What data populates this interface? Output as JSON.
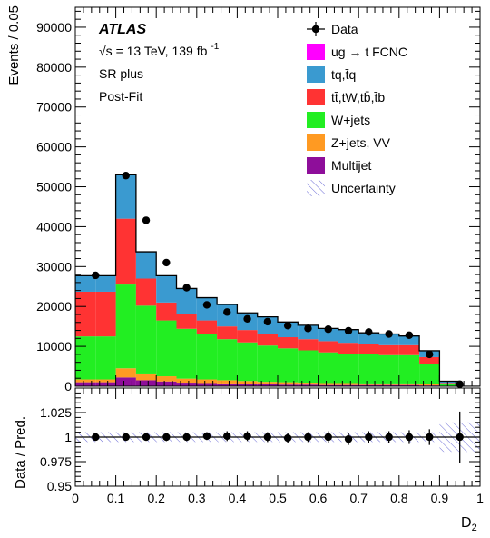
{
  "chart_data": {
    "type": "bar",
    "stacked": true,
    "x_edges": [
      0,
      0.05,
      0.1,
      0.15,
      0.2,
      0.25,
      0.3,
      0.35,
      0.4,
      0.45,
      0.5,
      0.55,
      0.6,
      0.65,
      0.7,
      0.75,
      0.8,
      0.85,
      0.9,
      0.95,
      1.0
    ],
    "x_ticks": [
      "0",
      "0.1",
      "0.2",
      "0.3",
      "0.4",
      "0.5",
      "0.6",
      "0.7",
      "0.8",
      "0.9",
      "1"
    ],
    "x_tick_values": [
      0,
      0.1,
      0.2,
      0.3,
      0.4,
      0.5,
      0.6,
      0.7,
      0.8,
      0.9,
      1.0
    ],
    "xlabel": "D",
    "xlabel_sub": "2",
    "ylabel": "Events / 0.05",
    "ylim": [
      0,
      95000
    ],
    "y_ticks": [
      "0",
      "10000",
      "20000",
      "30000",
      "40000",
      "50000",
      "60000",
      "70000",
      "80000",
      "90000"
    ],
    "y_tick_values": [
      0,
      10000,
      20000,
      30000,
      40000,
      50000,
      60000,
      70000,
      80000,
      90000
    ],
    "annotations": {
      "experiment": "ATLAS",
      "energy_line_prefix": "√s = 13 TeV, 139 fb",
      "energy_line_sup": "-1",
      "region": "SR plus",
      "fit": "Post-Fit"
    },
    "legend": {
      "placement": "top-right",
      "entries": [
        {
          "label": "Data",
          "kind": "marker",
          "color": "#000000"
        },
        {
          "label": "ug → t FCNC",
          "kind": "box",
          "color": "#ff00ff"
        },
        {
          "label": "tq,t̄q",
          "kind": "box",
          "color": "#3a9ad0"
        },
        {
          "label": "tt̄,tW,tb̄,t̄b",
          "kind": "box",
          "color": "#ff3333"
        },
        {
          "label": "W+jets",
          "kind": "box",
          "color": "#22ee22"
        },
        {
          "label": "Z+jets, VV",
          "kind": "box",
          "color": "#ff9a22"
        },
        {
          "label": "Multijet",
          "kind": "box",
          "color": "#8e0e9a"
        },
        {
          "label": "Uncertainty",
          "kind": "hatch",
          "color": "#6c6cd6"
        }
      ]
    },
    "series": [
      {
        "key": "multijet",
        "color": "#8e0e9a",
        "values": [
          1000,
          1000,
          2200,
          1500,
          1200,
          900,
          800,
          700,
          600,
          500,
          400,
          400,
          300,
          300,
          300,
          300,
          300,
          200,
          50,
          0
        ]
      },
      {
        "key": "zjets",
        "color": "#ff9a22",
        "values": [
          700,
          700,
          2300,
          1700,
          1300,
          1000,
          900,
          800,
          700,
          600,
          600,
          500,
          500,
          500,
          400,
          400,
          400,
          300,
          50,
          0
        ]
      },
      {
        "key": "wjets",
        "color": "#22ee22",
        "values": [
          10800,
          10800,
          21000,
          17000,
          14000,
          12500,
          11300,
          10300,
          9700,
          9100,
          8500,
          8100,
          7700,
          7400,
          7300,
          7100,
          7100,
          5000,
          600,
          0
        ]
      },
      {
        "key": "ttbar",
        "color": "#ff3333",
        "values": [
          11200,
          11200,
          16500,
          6800,
          4500,
          3600,
          3500,
          3200,
          3100,
          3000,
          2800,
          2800,
          2800,
          2700,
          2600,
          2500,
          2500,
          1800,
          150,
          0
        ]
      },
      {
        "key": "tq",
        "color": "#3a9ad0",
        "values": [
          4000,
          4000,
          11000,
          6700,
          6700,
          6500,
          5700,
          5500,
          4300,
          4200,
          3800,
          3500,
          3200,
          3300,
          2800,
          2800,
          2300,
          1600,
          400,
          0
        ]
      },
      {
        "key": "fcnc",
        "color": "#ff00ff",
        "values": [
          0,
          0,
          0,
          0,
          0,
          0,
          0,
          0,
          0,
          0,
          0,
          0,
          0,
          0,
          0,
          0,
          0,
          0,
          0,
          0
        ]
      }
    ],
    "data_points": {
      "x": [
        0.05,
        0.125,
        0.175,
        0.225,
        0.275,
        0.325,
        0.375,
        0.425,
        0.475,
        0.525,
        0.575,
        0.625,
        0.675,
        0.725,
        0.775,
        0.825,
        0.875,
        0.95
      ],
      "y": [
        27800,
        52800,
        41600,
        31000,
        24700,
        20400,
        18600,
        16900,
        16200,
        15200,
        14500,
        14300,
        13900,
        13600,
        13100,
        12800,
        8000,
        500
      ]
    },
    "ratio": {
      "ylabel": "Data / Pred.",
      "ylim": [
        0.95,
        1.05
      ],
      "y_ticks": [
        "0.95",
        "0.975",
        "1",
        "1.025"
      ],
      "y_tick_values": [
        0.95,
        0.975,
        1.0,
        1.025
      ],
      "x": [
        0.05,
        0.125,
        0.175,
        0.225,
        0.275,
        0.325,
        0.375,
        0.425,
        0.475,
        0.525,
        0.575,
        0.625,
        0.675,
        0.725,
        0.775,
        0.825,
        0.875,
        0.95
      ],
      "y": [
        1.0,
        1.0,
        1.0,
        1.0,
        1.0,
        1.001,
        1.001,
        1.001,
        1.0,
        0.999,
        1.0,
        1.0,
        0.998,
        1.0,
        1.0,
        1.0,
        1.0,
        1.0
      ],
      "yerr": [
        0.003,
        0.002,
        0.003,
        0.004,
        0.004,
        0.004,
        0.005,
        0.005,
        0.005,
        0.005,
        0.005,
        0.006,
        0.006,
        0.006,
        0.006,
        0.007,
        0.008,
        0.026
      ],
      "unc_edges": [
        0,
        0.1,
        0.15,
        0.2,
        0.25,
        0.3,
        0.35,
        0.4,
        0.45,
        0.5,
        0.55,
        0.6,
        0.65,
        0.7,
        0.75,
        0.8,
        0.85,
        0.9,
        0.95,
        1.0
      ],
      "unc": [
        0.005,
        0.005,
        0.005,
        0.005,
        0.005,
        0.005,
        0.005,
        0.005,
        0.005,
        0.005,
        0.005,
        0.005,
        0.005,
        0.005,
        0.005,
        0.005,
        0.005,
        0.015,
        0.015
      ]
    }
  }
}
